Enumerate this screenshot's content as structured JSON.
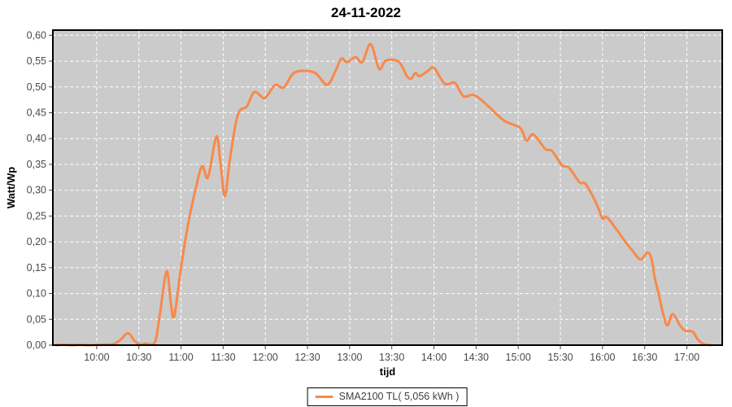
{
  "title": "24-11-2022",
  "colors": {
    "series_line": "#f7894b",
    "plot_background": "#cbcbcb",
    "grid_line": "#ffffff",
    "plot_border": "#000000",
    "tick_label": "#4a4a4a",
    "axis_title": "#000000",
    "page_background": "#ffffff"
  },
  "legend": {
    "label": "SMA2100 TL( 5,056 kWh )",
    "line_color": "#f7894b"
  },
  "chart_data": {
    "type": "line",
    "title": "24-11-2022",
    "xlabel": "tijd",
    "ylabel": "Watt/Wp",
    "x_unit": "time_decimal_hours",
    "xlim": [
      9.48,
      17.42
    ],
    "ylim": [
      0,
      0.61
    ],
    "grid": "white dashed, both axes",
    "legend_position": "bottom-center",
    "x_ticks": [
      {
        "t": 10.0,
        "label": "10:00"
      },
      {
        "t": 10.5,
        "label": "10:30"
      },
      {
        "t": 11.0,
        "label": "11:00"
      },
      {
        "t": 11.5,
        "label": "11:30"
      },
      {
        "t": 12.0,
        "label": "12:00"
      },
      {
        "t": 12.5,
        "label": "12:30"
      },
      {
        "t": 13.0,
        "label": "13:00"
      },
      {
        "t": 13.5,
        "label": "13:30"
      },
      {
        "t": 14.0,
        "label": "14:00"
      },
      {
        "t": 14.5,
        "label": "14:30"
      },
      {
        "t": 15.0,
        "label": "15:00"
      },
      {
        "t": 15.5,
        "label": "15:30"
      },
      {
        "t": 16.0,
        "label": "16:00"
      },
      {
        "t": 16.5,
        "label": "16:30"
      },
      {
        "t": 17.0,
        "label": "17:00"
      }
    ],
    "y_ticks": [
      {
        "v": 0.0,
        "label": "0,00"
      },
      {
        "v": 0.05,
        "label": "0,05"
      },
      {
        "v": 0.1,
        "label": "0,10"
      },
      {
        "v": 0.15,
        "label": "0,15"
      },
      {
        "v": 0.2,
        "label": "0,20"
      },
      {
        "v": 0.25,
        "label": "0,25"
      },
      {
        "v": 0.3,
        "label": "0,30"
      },
      {
        "v": 0.35,
        "label": "0,35"
      },
      {
        "v": 0.4,
        "label": "0,40"
      },
      {
        "v": 0.45,
        "label": "0,45"
      },
      {
        "v": 0.5,
        "label": "0,50"
      },
      {
        "v": 0.55,
        "label": "0,55"
      },
      {
        "v": 0.6,
        "label": "0,60"
      }
    ],
    "series": [
      {
        "name": "SMA2100 TL( 5,056 kWh )",
        "color": "#f7894b",
        "points": [
          [
            9.52,
            0.0
          ],
          [
            9.7,
            0.0
          ],
          [
            9.9,
            0.0
          ],
          [
            10.1,
            0.001
          ],
          [
            10.2,
            0.002
          ],
          [
            10.28,
            0.01
          ],
          [
            10.37,
            0.023
          ],
          [
            10.45,
            0.008
          ],
          [
            10.52,
            0.001
          ],
          [
            10.58,
            0.003
          ],
          [
            10.65,
            0.001
          ],
          [
            10.7,
            0.01
          ],
          [
            10.75,
            0.06
          ],
          [
            10.83,
            0.143
          ],
          [
            10.88,
            0.08
          ],
          [
            10.92,
            0.057
          ],
          [
            11.0,
            0.15
          ],
          [
            11.08,
            0.23
          ],
          [
            11.17,
            0.3
          ],
          [
            11.25,
            0.347
          ],
          [
            11.32,
            0.325
          ],
          [
            11.42,
            0.404
          ],
          [
            11.47,
            0.35
          ],
          [
            11.52,
            0.289
          ],
          [
            11.58,
            0.36
          ],
          [
            11.65,
            0.43
          ],
          [
            11.7,
            0.455
          ],
          [
            11.78,
            0.462
          ],
          [
            11.87,
            0.49
          ],
          [
            11.98,
            0.478
          ],
          [
            12.03,
            0.485
          ],
          [
            12.12,
            0.504
          ],
          [
            12.22,
            0.499
          ],
          [
            12.35,
            0.528
          ],
          [
            12.58,
            0.528
          ],
          [
            12.73,
            0.504
          ],
          [
            12.83,
            0.53
          ],
          [
            12.9,
            0.555
          ],
          [
            12.97,
            0.548
          ],
          [
            13.07,
            0.558
          ],
          [
            13.15,
            0.548
          ],
          [
            13.25,
            0.583
          ],
          [
            13.35,
            0.535
          ],
          [
            13.43,
            0.551
          ],
          [
            13.58,
            0.549
          ],
          [
            13.68,
            0.521
          ],
          [
            13.73,
            0.516
          ],
          [
            13.78,
            0.527
          ],
          [
            13.83,
            0.521
          ],
          [
            13.93,
            0.531
          ],
          [
            14.0,
            0.537
          ],
          [
            14.13,
            0.506
          ],
          [
            14.25,
            0.508
          ],
          [
            14.35,
            0.482
          ],
          [
            14.48,
            0.484
          ],
          [
            14.65,
            0.462
          ],
          [
            14.83,
            0.435
          ],
          [
            15.0,
            0.423
          ],
          [
            15.05,
            0.414
          ],
          [
            15.1,
            0.396
          ],
          [
            15.18,
            0.408
          ],
          [
            15.32,
            0.38
          ],
          [
            15.4,
            0.376
          ],
          [
            15.52,
            0.348
          ],
          [
            15.6,
            0.344
          ],
          [
            15.73,
            0.315
          ],
          [
            15.8,
            0.312
          ],
          [
            15.93,
            0.273
          ],
          [
            16.0,
            0.245
          ],
          [
            16.05,
            0.248
          ],
          [
            16.17,
            0.223
          ],
          [
            16.28,
            0.198
          ],
          [
            16.35,
            0.184
          ],
          [
            16.45,
            0.166
          ],
          [
            16.53,
            0.179
          ],
          [
            16.58,
            0.168
          ],
          [
            16.62,
            0.13
          ],
          [
            16.67,
            0.096
          ],
          [
            16.72,
            0.06
          ],
          [
            16.77,
            0.038
          ],
          [
            16.83,
            0.06
          ],
          [
            16.92,
            0.038
          ],
          [
            16.98,
            0.028
          ],
          [
            17.07,
            0.026
          ],
          [
            17.13,
            0.011
          ],
          [
            17.2,
            0.002
          ],
          [
            17.28,
            0.0
          ]
        ]
      }
    ]
  }
}
